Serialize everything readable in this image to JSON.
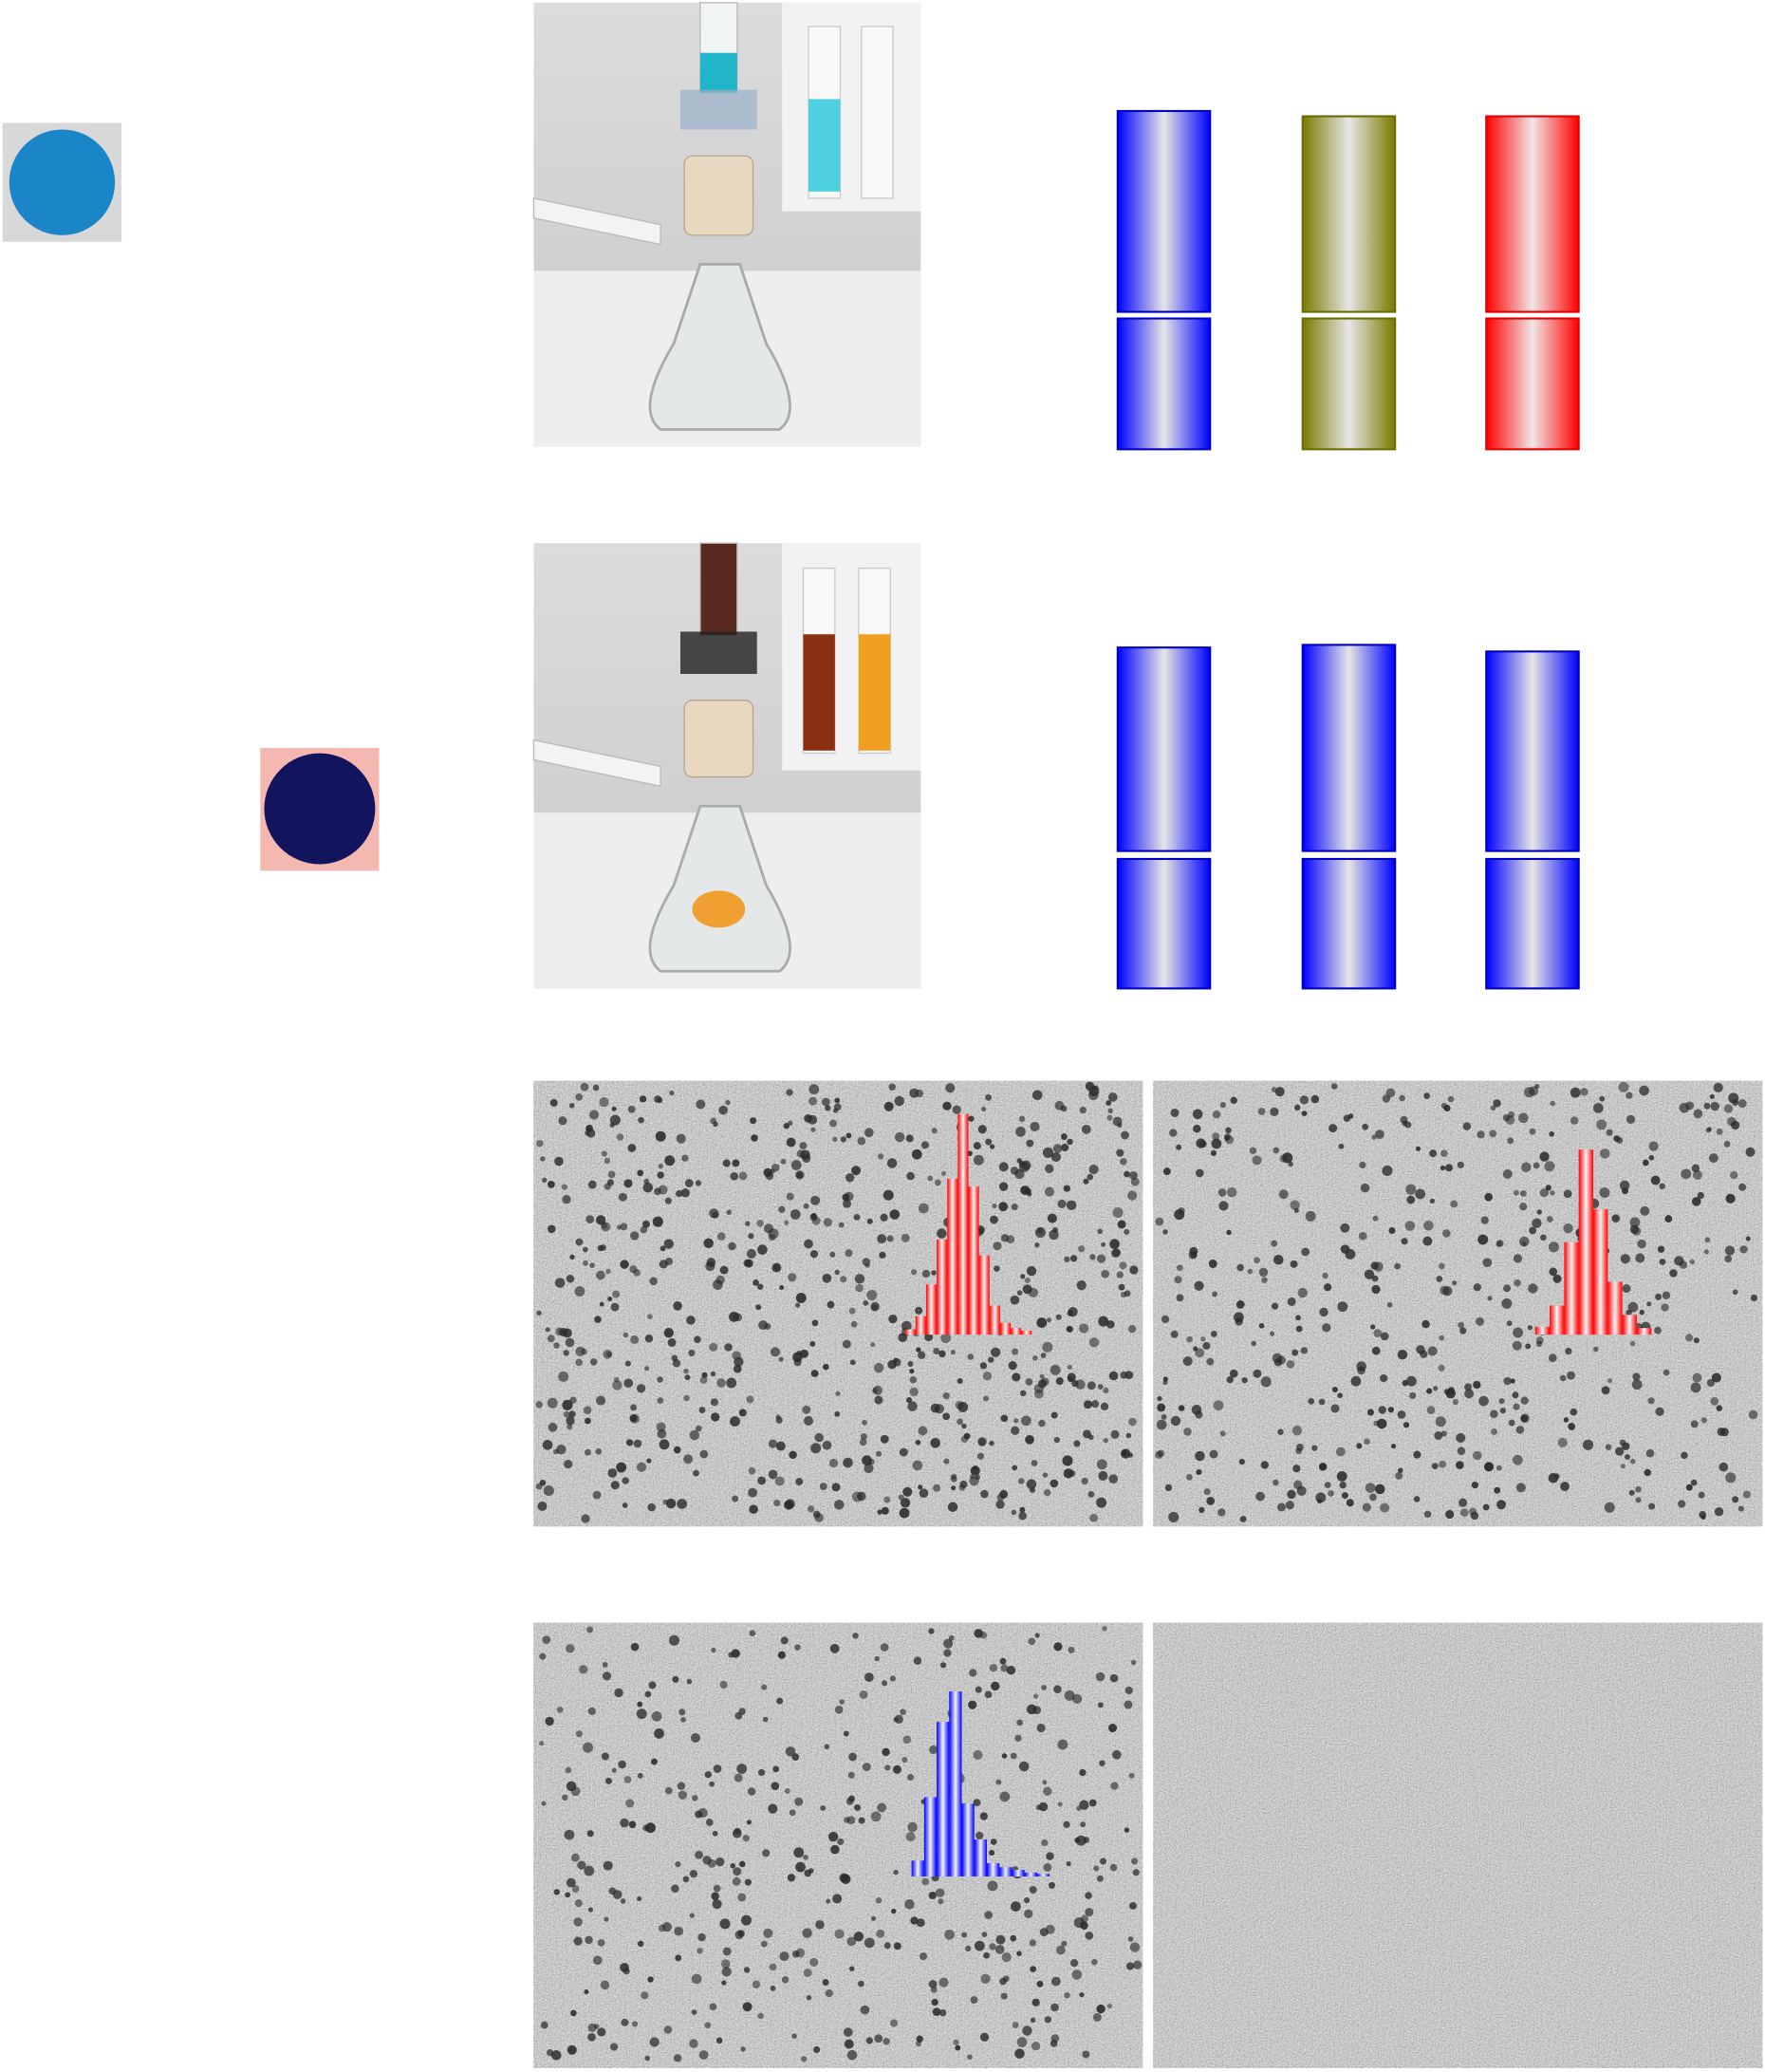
{
  "histograms": [
    {
      "color": "#ff0000",
      "values": [
        4,
        14,
        38,
        72,
        118,
        167,
        112,
        60,
        22,
        9,
        5,
        3
      ]
    },
    {
      "color": "#ff0000",
      "values": [
        6,
        22,
        70,
        140,
        95,
        40,
        15,
        5
      ]
    },
    {
      "color": "#0000ff",
      "values": [
        12,
        60,
        117,
        140,
        55,
        28,
        10,
        7,
        5,
        3,
        2
      ]
    }
  ]
}
